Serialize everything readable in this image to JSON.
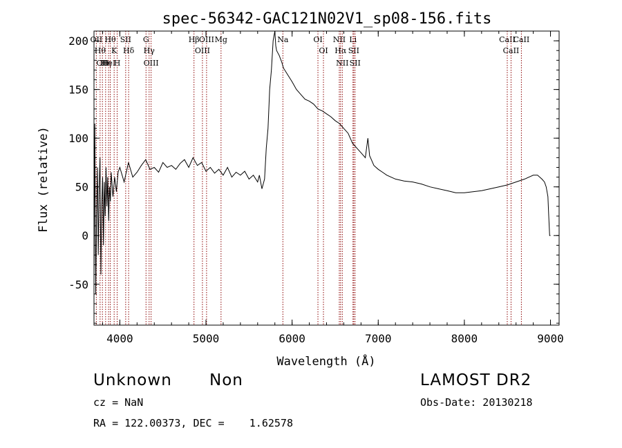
{
  "chart_data": {
    "type": "line",
    "title": "spec-56342-GAC121N02V1_sp08-156.fits",
    "xlabel": "Wavelength (Å)",
    "ylabel": "Flux (relative)",
    "xlim": [
      3700,
      9100
    ],
    "ylim": [
      -92,
      210
    ],
    "xticks": [
      "4000",
      "5000",
      "6000",
      "7000",
      "8000",
      "9000"
    ],
    "yticks": [
      "-50",
      "0",
      "50",
      "100",
      "150",
      "200"
    ],
    "xtick_values": [
      4000,
      5000,
      6000,
      7000,
      8000,
      9000
    ],
    "ytick_values": [
      -50,
      0,
      50,
      100,
      150,
      200
    ],
    "grid": false,
    "series": [
      {
        "x": [
          3700,
          3710,
          3720,
          3730,
          3740,
          3750,
          3760,
          3770,
          3780,
          3790,
          3800,
          3810,
          3820,
          3830,
          3840,
          3850,
          3860,
          3870,
          3880,
          3890,
          3900,
          3920,
          3940,
          3960,
          3980,
          4000,
          4050,
          4100,
          4150,
          4200,
          4250,
          4300,
          4350,
          4400,
          4450,
          4500,
          4550,
          4600,
          4650,
          4700,
          4750,
          4800,
          4850,
          4900,
          4950,
          5000,
          5050,
          5100,
          5150,
          5200,
          5250,
          5300,
          5350,
          5400,
          5450,
          5500,
          5550,
          5600,
          5620,
          5650,
          5680,
          5700,
          5720,
          5740,
          5760,
          5780,
          5800,
          5810,
          5820,
          5850,
          5880,
          5900,
          5950,
          6000,
          6050,
          6100,
          6150,
          6200,
          6250,
          6300,
          6350,
          6400,
          6450,
          6500,
          6550,
          6600,
          6650,
          6700,
          6750,
          6800,
          6850,
          6880,
          6900,
          6920,
          6950,
          7000,
          7050,
          7100,
          7200,
          7300,
          7400,
          7500,
          7600,
          7700,
          7800,
          7900,
          8000,
          8100,
          8200,
          8300,
          8400,
          8500,
          8600,
          8700,
          8800,
          8850,
          8900,
          8930,
          8950,
          8970,
          8980,
          8990,
          9000
        ],
        "y": [
          -40,
          115,
          -60,
          20,
          70,
          -20,
          50,
          80,
          -40,
          30,
          60,
          -10,
          55,
          20,
          70,
          30,
          60,
          15,
          50,
          35,
          65,
          40,
          60,
          45,
          65,
          70,
          55,
          75,
          60,
          65,
          72,
          78,
          68,
          70,
          65,
          75,
          70,
          72,
          68,
          74,
          78,
          70,
          80,
          72,
          75,
          66,
          70,
          64,
          68,
          62,
          70,
          60,
          65,
          62,
          66,
          58,
          62,
          55,
          62,
          48,
          58,
          90,
          110,
          150,
          170,
          200,
          210,
          195,
          190,
          185,
          178,
          172,
          165,
          158,
          150,
          145,
          140,
          138,
          135,
          130,
          128,
          125,
          122,
          118,
          115,
          110,
          105,
          95,
          90,
          85,
          80,
          100,
          82,
          78,
          72,
          68,
          65,
          62,
          58,
          56,
          55,
          53,
          50,
          48,
          46,
          44,
          44,
          45,
          46,
          48,
          50,
          52,
          55,
          58,
          62,
          62,
          58,
          55,
          50,
          40,
          20,
          0,
          0
        ]
      }
    ],
    "lines": [
      {
        "wl": 3727,
        "label": "OII"
      },
      {
        "wl": 3771,
        "label": "Hθ"
      },
      {
        "wl": 3798,
        "label": "OII"
      },
      {
        "wl": 3835,
        "label": "Hη"
      },
      {
        "wl": 3869,
        "label": "HeI"
      },
      {
        "wl": 3889,
        "label": "Hθ"
      },
      {
        "wl": 3934,
        "label": "K"
      },
      {
        "wl": 3969,
        "label": "H"
      },
      {
        "wl": 4068,
        "label": "SII"
      },
      {
        "wl": 4102,
        "label": "Hδ"
      },
      {
        "wl": 4304,
        "label": "G"
      },
      {
        "wl": 4340,
        "label": "Hγ"
      },
      {
        "wl": 4363,
        "label": "OIII"
      },
      {
        "wl": 4861,
        "label": "Hβ"
      },
      {
        "wl": 4959,
        "label": "OIII"
      },
      {
        "wl": 5007,
        "label": "OIII"
      },
      {
        "wl": 5175,
        "label": "Mg"
      },
      {
        "wl": 5893,
        "label": "Na"
      },
      {
        "wl": 6300,
        "label": "OI"
      },
      {
        "wl": 6364,
        "label": "OI"
      },
      {
        "wl": 6548,
        "label": "NII"
      },
      {
        "wl": 6563,
        "label": "Hα"
      },
      {
        "wl": 6583,
        "label": "NII"
      },
      {
        "wl": 6707,
        "label": "Li"
      },
      {
        "wl": 6716,
        "label": "SII"
      },
      {
        "wl": 6731,
        "label": "SII"
      },
      {
        "wl": 8498,
        "label": "CaII"
      },
      {
        "wl": 8542,
        "label": "CaII"
      },
      {
        "wl": 8662,
        "label": "CaII"
      }
    ]
  },
  "info": {
    "object_class": "Unknown",
    "subclass": "Non",
    "survey": "LAMOST DR2",
    "cz": "cz = NaN",
    "obs_date": "Obs-Date: 20130218",
    "coords": "RA = 122.00373, DEC =    1.62578"
  },
  "colors": {
    "spectrum": "#000000",
    "line_markers": "#8b0000",
    "axes": "#000000",
    "background": "#ffffff"
  }
}
